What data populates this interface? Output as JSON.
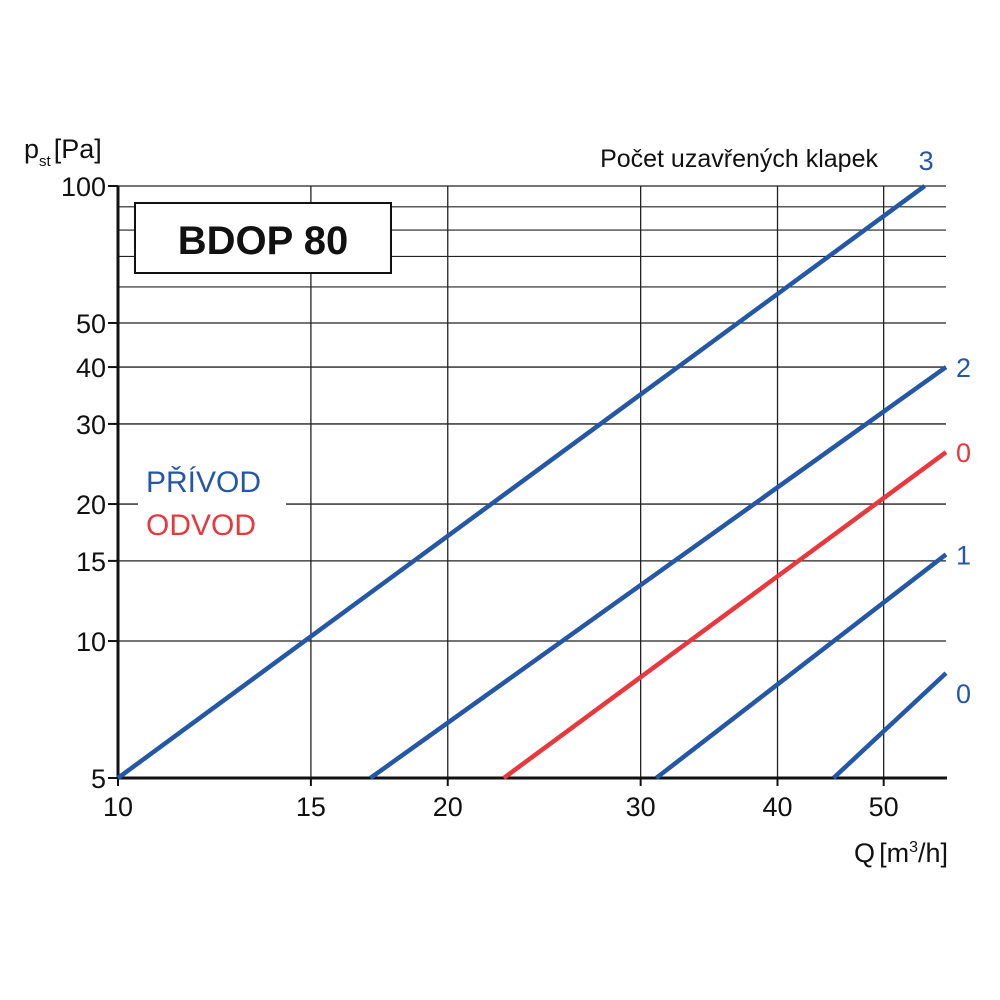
{
  "chart_data": {
    "type": "line",
    "title": "BDOP 80",
    "header": "Počet uzavřených klapek",
    "xlabel": {
      "main": "Q",
      "unit_pre": "[m",
      "unit_sup": "3",
      "unit_post": "/h]"
    },
    "ylabel": {
      "main": "p",
      "sub": "st",
      "unit": "[Pa]"
    },
    "x_scale": "log",
    "y_scale": "log",
    "xlim": [
      10,
      57
    ],
    "ylim": [
      5,
      100
    ],
    "x_ticks": [
      10,
      15,
      20,
      30,
      40,
      50
    ],
    "y_ticks": [
      5,
      10,
      15,
      20,
      30,
      40,
      50,
      100
    ],
    "y_minor_grid": [
      60,
      70,
      80,
      90
    ],
    "grid": true,
    "legend": [
      {
        "label": "PŘÍVOD",
        "color": "#2457a6"
      },
      {
        "label": "ODVOD",
        "color": "#e8383d"
      }
    ],
    "legend_placement": "left-middle",
    "series": [
      {
        "name": "3",
        "group": "PŘÍVOD",
        "color": "#2457a6",
        "points": [
          [
            10,
            5
          ],
          [
            54.5,
            100
          ]
        ]
      },
      {
        "name": "2",
        "group": "PŘÍVOD",
        "color": "#2457a6",
        "points": [
          [
            17,
            5
          ],
          [
            57,
            40
          ]
        ]
      },
      {
        "name": "0",
        "group": "ODVOD",
        "color": "#e8383d",
        "points": [
          [
            22.5,
            5
          ],
          [
            57,
            26
          ]
        ]
      },
      {
        "name": "1",
        "group": "PŘÍVOD",
        "color": "#2457a6",
        "points": [
          [
            31,
            5
          ],
          [
            57,
            15.5
          ]
        ]
      },
      {
        "name": "0",
        "group": "PŘÍVOD",
        "color": "#2457a6",
        "points": [
          [
            45,
            5
          ],
          [
            57,
            8.5
          ]
        ]
      }
    ]
  }
}
